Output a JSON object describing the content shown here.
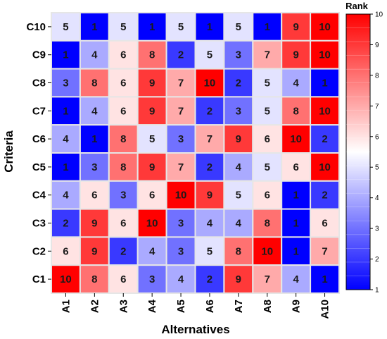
{
  "chart_data": {
    "type": "heatmap",
    "xlabel": "Alternatives",
    "ylabel": "Criteria",
    "x_categories": [
      "A1",
      "A2",
      "A3",
      "A4",
      "A5",
      "A6",
      "A7",
      "A8",
      "A9",
      "A10"
    ],
    "y_categories": [
      "C10",
      "C9",
      "C8",
      "C7",
      "C6",
      "C5",
      "C4",
      "C3",
      "C2",
      "C1"
    ],
    "values": [
      [
        5,
        1,
        5,
        1,
        5,
        1,
        5,
        1,
        9,
        10
      ],
      [
        1,
        4,
        6,
        8,
        2,
        5,
        3,
        7,
        9,
        10
      ],
      [
        3,
        8,
        6,
        9,
        7,
        10,
        2,
        5,
        4,
        1
      ],
      [
        1,
        4,
        6,
        9,
        7,
        2,
        3,
        5,
        8,
        10
      ],
      [
        4,
        1,
        8,
        5,
        3,
        7,
        9,
        6,
        10,
        2
      ],
      [
        1,
        3,
        8,
        9,
        7,
        2,
        4,
        5,
        6,
        10
      ],
      [
        4,
        6,
        3,
        6,
        10,
        9,
        5,
        6,
        1,
        2
      ],
      [
        2,
        9,
        6,
        10,
        3,
        4,
        4,
        8,
        1,
        6
      ],
      [
        6,
        9,
        2,
        4,
        3,
        5,
        8,
        10,
        1,
        7
      ],
      [
        10,
        8,
        6,
        3,
        4,
        2,
        9,
        7,
        4,
        1
      ]
    ],
    "colorbar": {
      "title": "Rank",
      "min": 1,
      "max": 10,
      "ticks": [
        1,
        2,
        3,
        4,
        5,
        6,
        7,
        8,
        9,
        10
      ],
      "colors": {
        "low": "#0000ff",
        "mid": "#ffffff",
        "high": "#ff0000"
      }
    }
  }
}
